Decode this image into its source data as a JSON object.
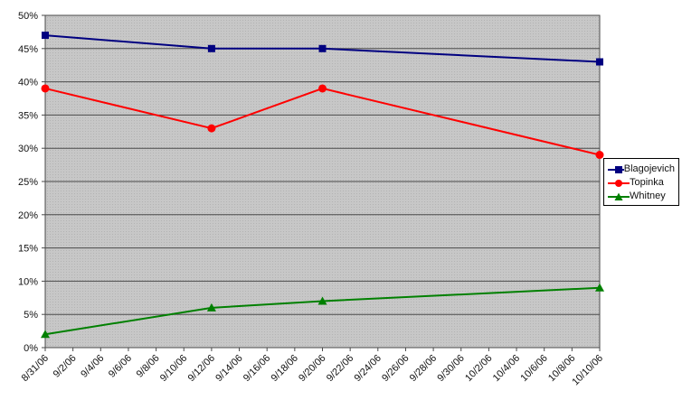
{
  "chart_data": {
    "type": "line",
    "title": "",
    "xlabel": "",
    "ylabel": "",
    "categories": [
      "8/31/06",
      "9/2/06",
      "9/4/06",
      "9/6/06",
      "9/8/06",
      "9/10/06",
      "9/12/06",
      "9/14/06",
      "9/16/06",
      "9/18/06",
      "9/20/06",
      "9/22/06",
      "9/24/06",
      "9/26/06",
      "9/28/06",
      "9/30/06",
      "10/2/06",
      "10/4/06",
      "10/6/06",
      "10/8/06",
      "10/10/06"
    ],
    "y_axis": {
      "min": 0,
      "max": 50,
      "step": 5,
      "tick_labels": [
        "0%",
        "5%",
        "10%",
        "15%",
        "20%",
        "25%",
        "30%",
        "35%",
        "40%",
        "45%",
        "50%"
      ],
      "format": "percent"
    },
    "series": [
      {
        "name": "Blagojevich",
        "color": "#000080",
        "marker": "square",
        "points": [
          {
            "date": "8/31/06",
            "value": 47
          },
          {
            "date": "9/12/06",
            "value": 45
          },
          {
            "date": "9/20/06",
            "value": 45
          },
          {
            "date": "10/10/06",
            "value": 43
          }
        ]
      },
      {
        "name": "Topinka",
        "color": "#ff0000",
        "marker": "circle",
        "points": [
          {
            "date": "8/31/06",
            "value": 39
          },
          {
            "date": "9/12/06",
            "value": 33
          },
          {
            "date": "9/20/06",
            "value": 39
          },
          {
            "date": "10/10/06",
            "value": 29
          }
        ]
      },
      {
        "name": "Whitney",
        "color": "#008000",
        "marker": "triangle",
        "points": [
          {
            "date": "8/31/06",
            "value": 2
          },
          {
            "date": "9/12/06",
            "value": 6
          },
          {
            "date": "9/20/06",
            "value": 7
          },
          {
            "date": "10/10/06",
            "value": 9
          }
        ]
      }
    ],
    "legend": {
      "position": "right",
      "background": "#ffffff",
      "border_color": "#000000"
    },
    "plot": {
      "background": "#c7c7c7",
      "dither_dot_color": "#b3b3b3",
      "gridline_color": "#4a4a4a",
      "grid_on": true
    }
  }
}
